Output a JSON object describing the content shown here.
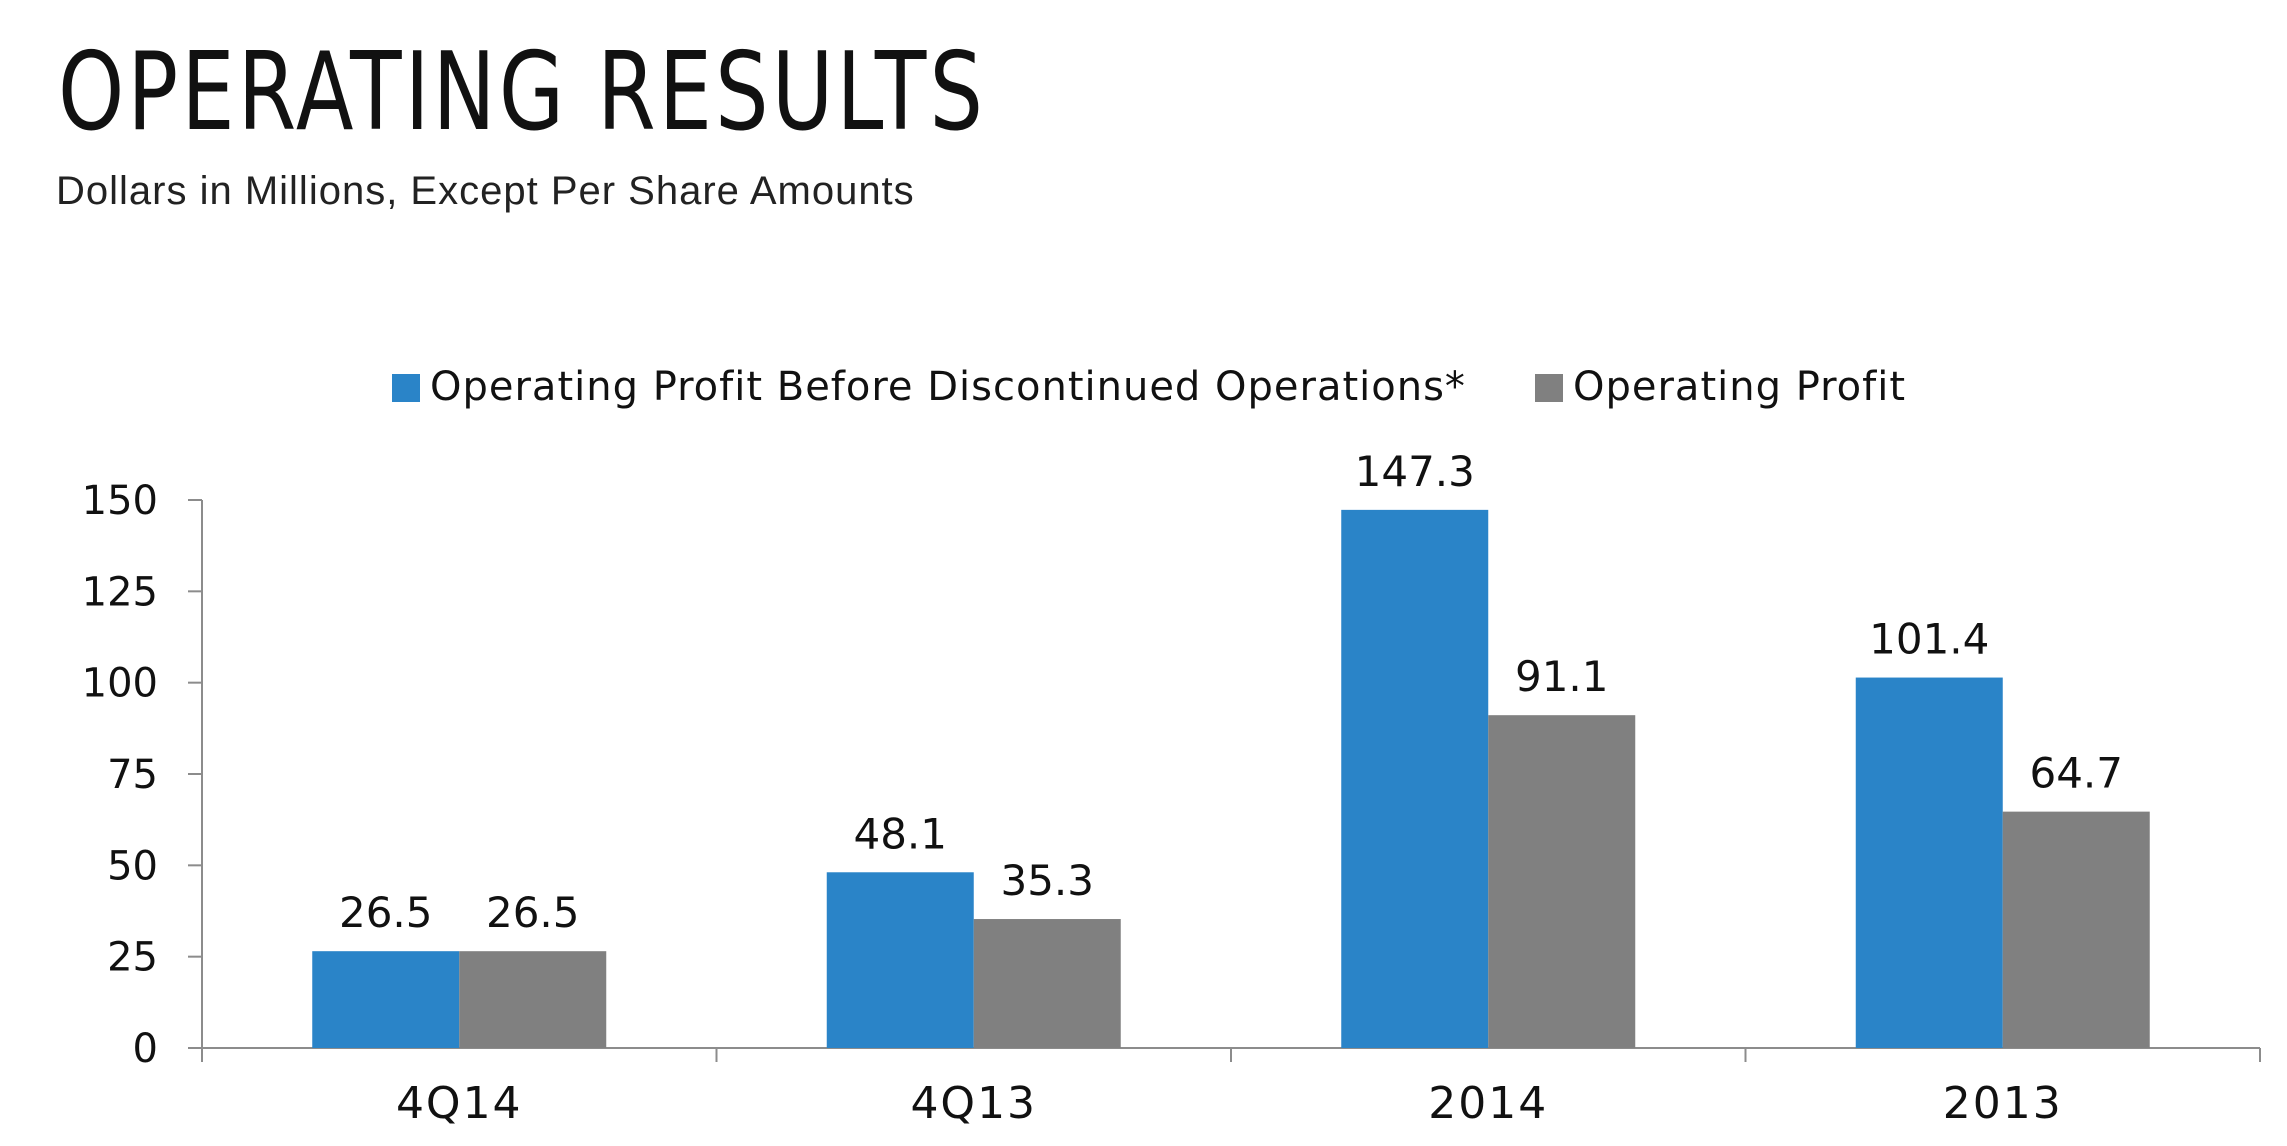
{
  "header": {
    "title": "OPERATING RESULTS",
    "subtitle": "Dollars in Millions, Except Per Share Amounts"
  },
  "chart_data": {
    "type": "bar",
    "title": "",
    "xlabel": "",
    "ylabel": "",
    "categories": [
      "4Q14",
      "4Q13",
      "2014",
      "2013"
    ],
    "series": [
      {
        "name": "Operating Profit Before Discontinued Operations*",
        "color": "#2a84c8",
        "values": [
          26.5,
          48.1,
          147.3,
          101.4
        ]
      },
      {
        "name": "Operating Profit",
        "color": "#808080",
        "values": [
          26.5,
          35.3,
          91.1,
          64.7
        ]
      }
    ],
    "data_labels": [
      [
        "26.5",
        "48.1",
        "147.3",
        "101.4"
      ],
      [
        "26.5",
        "35.3",
        "91.1",
        "64.7"
      ]
    ],
    "ylim": [
      0,
      150
    ],
    "yticks": [
      0,
      25,
      50,
      75,
      100,
      125,
      150
    ],
    "grid": false,
    "legend": "top"
  }
}
